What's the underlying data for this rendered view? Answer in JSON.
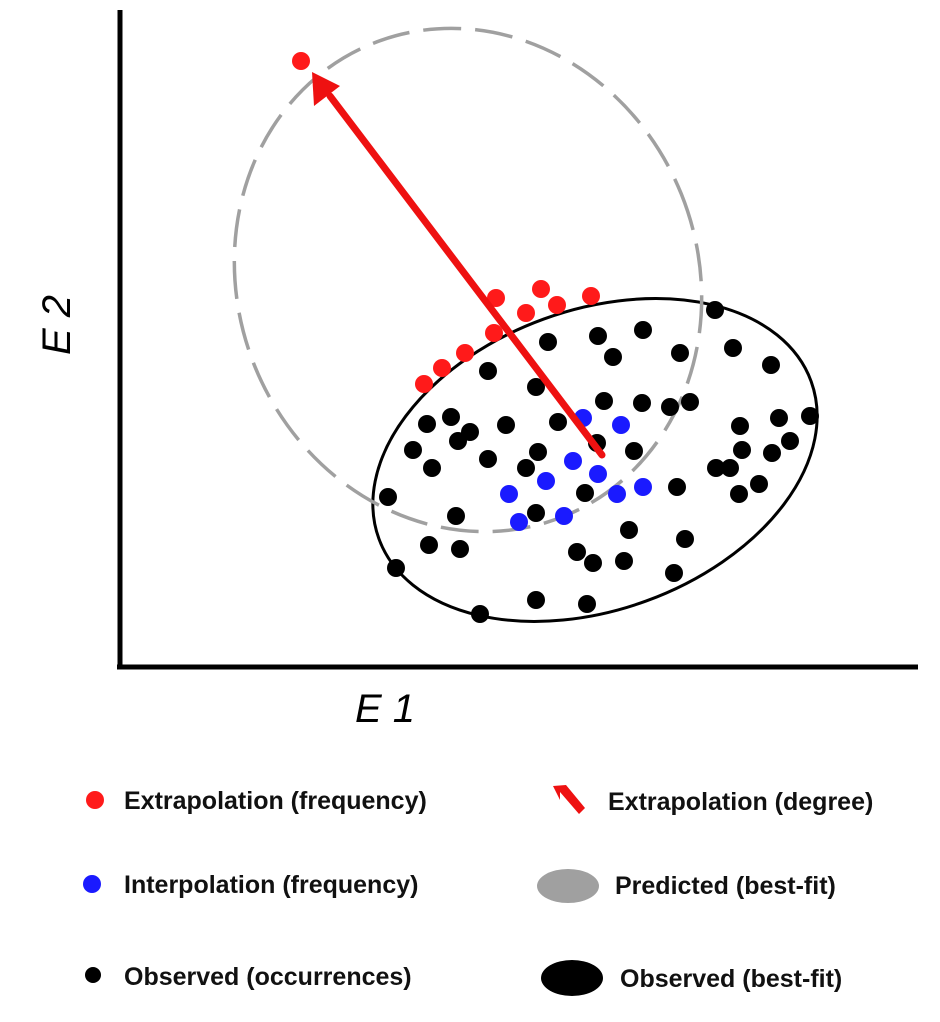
{
  "axes": {
    "x_label": "E 1",
    "y_label": "E 2"
  },
  "colors": {
    "extrapolation": "#ff1a1a",
    "interpolation": "#1a1aff",
    "observed": "#000000",
    "predicted": "#a0a0a0",
    "arrow": "#ee1111"
  },
  "legend": {
    "extrapolation_frequency": "Extrapolation (frequency)",
    "extrapolation_degree": "Extrapolation (degree)",
    "interpolation_frequency": "Interpolation (frequency)",
    "predicted_best_fit": "Predicted (best-fit)",
    "observed_occurrences": "Observed (occurrences)",
    "observed_best_fit": "Observed (best-fit)"
  }
}
